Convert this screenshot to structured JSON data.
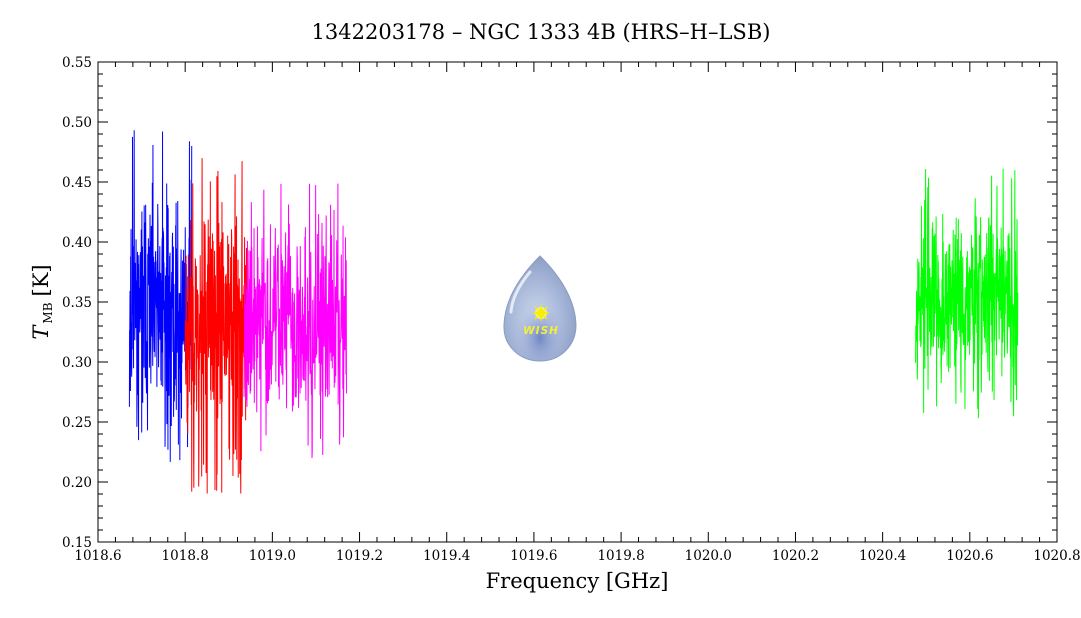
{
  "chart_data": {
    "type": "line",
    "title": "1342203178 – NGC 1333 4B (HRS–H–LSB)",
    "xlabel": "Frequency [GHz]",
    "ylabel_main": "T",
    "ylabel_sub": "MB",
    "ylabel_unit": "[K]",
    "xlim": [
      1018.6,
      1020.8
    ],
    "ylim": [
      0.15,
      0.55
    ],
    "x_ticks": [
      1018.6,
      1018.8,
      1019.0,
      1019.2,
      1019.4,
      1019.6,
      1019.8,
      1020.0,
      1020.2,
      1020.4,
      1020.6,
      1020.8
    ],
    "x_tick_labels": [
      "1018.6",
      "1018.8",
      "1019.0",
      "1019.2",
      "1019.4",
      "1019.6",
      "1019.8",
      "1020.0",
      "1020.2",
      "1020.4",
      "1020.6",
      "1020.8"
    ],
    "y_ticks": [
      0.15,
      0.2,
      0.25,
      0.3,
      0.35,
      0.4,
      0.45,
      0.5,
      0.55
    ],
    "y_tick_labels": [
      "0.15",
      "0.20",
      "0.25",
      "0.30",
      "0.35",
      "0.40",
      "0.45",
      "0.50",
      "0.55"
    ],
    "grid": false,
    "legend": "none",
    "series": [
      {
        "color": "#0000ff",
        "x_range": [
          1018.672,
          1018.815
        ],
        "mean": 0.345,
        "noise": 0.045,
        "min": 0.215,
        "max": 0.495,
        "points": 300,
        "seed": 11
      },
      {
        "color": "#ff0000",
        "x_range": [
          1018.8,
          1018.945
        ],
        "mean": 0.335,
        "noise": 0.05,
        "min": 0.19,
        "max": 0.472,
        "points": 300,
        "seed": 23
      },
      {
        "color": "#ff00ff",
        "x_range": [
          1018.935,
          1019.17
        ],
        "mean": 0.335,
        "noise": 0.04,
        "min": 0.22,
        "max": 0.45,
        "points": 420,
        "seed": 37
      },
      {
        "color": "#00ff00",
        "x_range": [
          1020.475,
          1020.71
        ],
        "mean": 0.355,
        "noise": 0.035,
        "min": 0.25,
        "max": 0.465,
        "points": 420,
        "seed": 53
      }
    ]
  },
  "logo": {
    "text": "WISH"
  }
}
